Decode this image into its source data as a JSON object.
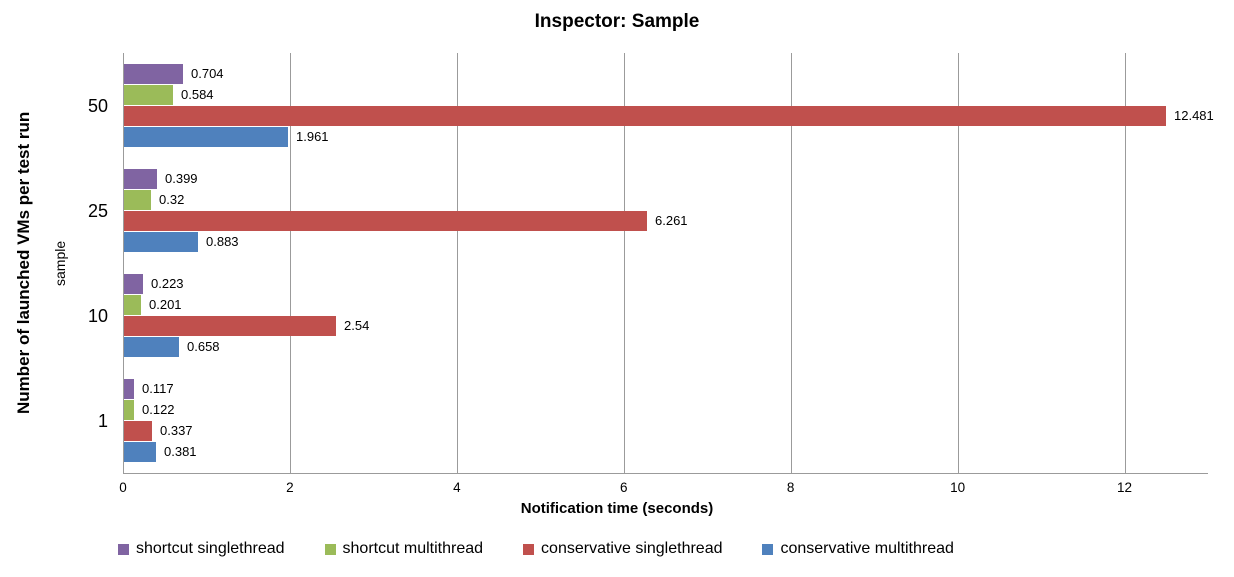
{
  "chart_data": {
    "type": "bar",
    "orientation": "horizontal",
    "title": "Inspector: Sample",
    "xlabel": "Notification time (seconds)",
    "ylabel": "Number of launched VMs per test run",
    "ylabel_secondary": "sample",
    "categories": [
      "50",
      "25",
      "10",
      "1"
    ],
    "series": [
      {
        "name": "shortcut singlethread",
        "color": "#8064A2",
        "values": [
          0.704,
          0.399,
          0.223,
          0.117
        ],
        "labels": [
          "0.704",
          "0.399",
          "0.223",
          "0.117"
        ]
      },
      {
        "name": "shortcut multithread",
        "color": "#9BBB59",
        "values": [
          0.584,
          0.32,
          0.201,
          0.122
        ],
        "labels": [
          "0.584",
          "0.32",
          "0.201",
          "0.122"
        ]
      },
      {
        "name": "conservative singlethread",
        "color": "#C0504D",
        "values": [
          12.481,
          6.261,
          2.54,
          0.337
        ],
        "labels": [
          "12.481",
          "6.261",
          "2.54",
          "0.337"
        ]
      },
      {
        "name": "conservative multithread",
        "color": "#4F81BD",
        "values": [
          1.961,
          0.883,
          0.658,
          0.381
        ],
        "labels": [
          "1.961",
          "0.883",
          "0.658",
          "0.381"
        ]
      }
    ],
    "x_ticks": [
      0,
      2,
      4,
      6,
      8,
      10,
      12
    ],
    "x_tick_labels": [
      "0",
      "2",
      "4",
      "6",
      "8",
      "10",
      "12"
    ],
    "xlim": [
      0,
      13
    ],
    "grid": true,
    "legend_position": "bottom",
    "colors": {
      "gridline": "#9b9b9b",
      "axis": "#9b9b9b",
      "text": "#000000",
      "background": "#ffffff"
    }
  }
}
